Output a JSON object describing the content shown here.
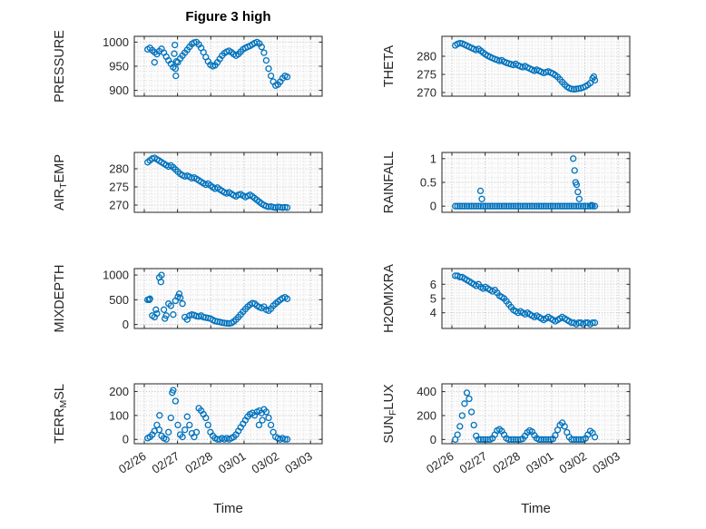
{
  "title": "Figure 3 high",
  "marker_color": "#0072BD",
  "x_axis": {
    "label": "Time",
    "ticks": [
      0,
      1,
      2,
      3,
      4,
      5
    ],
    "tick_labels": [
      "02/26",
      "02/27",
      "02/28",
      "03/01",
      "03/02",
      "03/03"
    ],
    "xlim": [
      -0.3,
      5.35
    ]
  },
  "shared_x": [
    0.1,
    0.17,
    0.24,
    0.31,
    0.38,
    0.45,
    0.52,
    0.59,
    0.66,
    0.73,
    0.8,
    0.87,
    0.94,
    1.01,
    1.08,
    1.15,
    1.22,
    1.29,
    1.36,
    1.43,
    1.5,
    1.57,
    1.64,
    1.71,
    1.78,
    1.85,
    1.92,
    1.99,
    2.06,
    2.13,
    2.2,
    2.27,
    2.34,
    2.41,
    2.48,
    2.55,
    2.62,
    2.69,
    2.76,
    2.83,
    2.9,
    2.97,
    3.04,
    3.11,
    3.18,
    3.25,
    3.32,
    3.39,
    3.46,
    3.53,
    3.6,
    3.67,
    3.74,
    3.81,
    3.88,
    3.95,
    4.02,
    4.09,
    4.16,
    4.23,
    4.3
  ],
  "chart_data": [
    {
      "key": "pressure",
      "type": "scatter",
      "col": 0,
      "row": 0,
      "ylabel": [
        {
          "t": "PRESSURE"
        }
      ],
      "yticks": [
        900,
        950,
        1000
      ],
      "ylim": [
        888,
        1012
      ],
      "y": [
        985,
        988,
        983,
        979,
        975,
        981,
        986,
        978,
        970,
        962,
        955,
        948,
        945,
        958,
        966,
        972,
        978,
        984,
        990,
        996,
        999,
        1000,
        995,
        988,
        979,
        969,
        960,
        953,
        950,
        952,
        958,
        965,
        972,
        977,
        980,
        982,
        979,
        975,
        972,
        975,
        980,
        985,
        988,
        990,
        992,
        995,
        998,
        1000,
        997,
        990,
        978,
        962,
        945,
        930,
        918,
        910,
        912,
        918,
        925,
        930,
        928
      ],
      "extra_points": [
        {
          "x": 0.95,
          "y": 930
        },
        {
          "x": 0.92,
          "y": 994
        },
        {
          "x": 0.9,
          "y": 976
        },
        {
          "x": 0.97,
          "y": 960
        },
        {
          "x": 0.31,
          "y": 958
        }
      ]
    },
    {
      "key": "theta",
      "type": "scatter",
      "col": 1,
      "row": 0,
      "ylabel": [
        {
          "t": "THETA"
        }
      ],
      "yticks": [
        270,
        275,
        280
      ],
      "ylim": [
        269,
        285.5
      ],
      "y": [
        283,
        283.4,
        283.6,
        283.5,
        283.2,
        282.9,
        282.6,
        282.3,
        282,
        281.7,
        282,
        281.5,
        281,
        280.5,
        280.1,
        279.8,
        279.5,
        279.2,
        279,
        278.7,
        278.9,
        278.5,
        278.2,
        278,
        277.8,
        277.6,
        277.9,
        277.5,
        277.2,
        277,
        277.3,
        276.9,
        276.6,
        276.3,
        276,
        276.3,
        276,
        275.7,
        275.4,
        275.6,
        275.8,
        275.5,
        275.2,
        274.8,
        274.3,
        273.6,
        272.9,
        272.2,
        271.6,
        271.2,
        271,
        270.9,
        271,
        271.1,
        271.2,
        271.4,
        271.7,
        272.1,
        272.6,
        273.9,
        273.4
      ],
      "extra_points": [
        {
          "x": 4.27,
          "y": 274.4
        }
      ]
    },
    {
      "key": "air_temp",
      "type": "scatter",
      "col": 0,
      "row": 1,
      "ylabel": [
        {
          "t": "AIR"
        },
        {
          "t": "T",
          "sub": true
        },
        {
          "t": "EMP"
        }
      ],
      "yticks": [
        270,
        275,
        280
      ],
      "ylim": [
        268,
        284.5
      ],
      "y": [
        281.8,
        282.3,
        282.8,
        283,
        282.6,
        282.2,
        281.8,
        281.4,
        281,
        280.6,
        280.9,
        280.4,
        279.8,
        279.2,
        278.6,
        278.2,
        277.9,
        278.1,
        277.8,
        277.4,
        277.6,
        277.2,
        276.8,
        276.4,
        276,
        275.6,
        275.9,
        275.4,
        274.9,
        274.5,
        274.8,
        274.3,
        273.9,
        273.5,
        273.2,
        273.5,
        273.1,
        272.7,
        272.4,
        272.8,
        273,
        272.6,
        272.2,
        272.5,
        272.8,
        272.4,
        271.9,
        271.4,
        270.9,
        270.4,
        270,
        269.7,
        269.5,
        269.6,
        269.4,
        269.3,
        269.5,
        269.4,
        269.3,
        269.4,
        269.3
      ],
      "extra_points": []
    },
    {
      "key": "rainfall",
      "type": "scatter",
      "col": 1,
      "row": 1,
      "ylabel": [
        {
          "t": "RAINFALL"
        }
      ],
      "yticks": [
        0,
        0.5,
        1
      ],
      "ylim": [
        -0.13,
        1.13
      ],
      "y": [
        0,
        0,
        0,
        0,
        0,
        0,
        0,
        0,
        0,
        0,
        0,
        0,
        0,
        0,
        0,
        0,
        0,
        0,
        0,
        0,
        0,
        0,
        0,
        0,
        0,
        0,
        0,
        0,
        0,
        0,
        0,
        0,
        0,
        0,
        0,
        0,
        0,
        0,
        0,
        0,
        0,
        0,
        0,
        0,
        0,
        0,
        0,
        0,
        0,
        0,
        0,
        0,
        0,
        0,
        0,
        0,
        0,
        0,
        0,
        0,
        0
      ],
      "extra_points": [
        {
          "x": 0.86,
          "y": 0.32
        },
        {
          "x": 0.9,
          "y": 0.15
        },
        {
          "x": 3.65,
          "y": 1.0
        },
        {
          "x": 3.69,
          "y": 0.75
        },
        {
          "x": 3.72,
          "y": 0.5
        },
        {
          "x": 3.75,
          "y": 0.45
        },
        {
          "x": 3.79,
          "y": 0.3
        },
        {
          "x": 3.83,
          "y": 0.15
        },
        {
          "x": 4.2,
          "y": 0.02
        }
      ]
    },
    {
      "key": "mixdepth",
      "type": "scatter",
      "col": 0,
      "row": 2,
      "ylabel": [
        {
          "t": "MIXDEPTH"
        }
      ],
      "yticks": [
        0,
        500,
        1000
      ],
      "ylim": [
        -80,
        1130
      ],
      "y": [
        500,
        520,
        180,
        150,
        220,
        950,
        1000,
        300,
        180,
        420,
        380,
        200,
        480,
        560,
        540,
        420,
        150,
        100,
        180,
        200,
        190,
        170,
        160,
        180,
        150,
        140,
        130,
        120,
        90,
        70,
        60,
        50,
        40,
        30,
        25,
        20,
        30,
        60,
        100,
        150,
        200,
        260,
        310,
        360,
        400,
        430,
        420,
        380,
        350,
        330,
        360,
        300,
        280,
        320,
        380,
        420,
        460,
        500,
        530,
        550,
        520
      ],
      "extra_points": [
        {
          "x": 0.5,
          "y": 860
        },
        {
          "x": 0.15,
          "y": 500
        },
        {
          "x": 0.35,
          "y": 300
        },
        {
          "x": 1.05,
          "y": 620
        },
        {
          "x": 0.62,
          "y": 120
        }
      ]
    },
    {
      "key": "h2omixra",
      "type": "scatter",
      "col": 1,
      "row": 2,
      "ylabel": [
        {
          "t": "H2OMIXRA"
        }
      ],
      "yticks": [
        4,
        5,
        6
      ],
      "ylim": [
        2.9,
        7.1
      ],
      "y": [
        6.6,
        6.6,
        6.5,
        6.5,
        6.4,
        6.3,
        6.2,
        6.1,
        6,
        5.9,
        6,
        5.8,
        5.7,
        5.8,
        5.7,
        5.6,
        5.5,
        5.6,
        5.4,
        5.2,
        5.1,
        5,
        4.8,
        4.6,
        4.4,
        4.2,
        4.1,
        4,
        4.1,
        4,
        3.9,
        4,
        3.9,
        3.8,
        3.7,
        3.8,
        3.7,
        3.6,
        3.5,
        3.6,
        3.7,
        3.6,
        3.5,
        3.4,
        3.5,
        3.6,
        3.7,
        3.6,
        3.5,
        3.4,
        3.3,
        3.3,
        3.2,
        3.3,
        3.3,
        3.2,
        3.3,
        3.3,
        3.2,
        3.3,
        3.3
      ],
      "extra_points": []
    },
    {
      "key": "terr_msl",
      "type": "scatter",
      "col": 0,
      "row": 3,
      "ylabel": [
        {
          "t": "TERR"
        },
        {
          "t": "M",
          "sub": true
        },
        {
          "t": "SL"
        }
      ],
      "yticks": [
        0,
        100,
        200
      ],
      "ylim": [
        -18,
        232
      ],
      "y": [
        5,
        10,
        20,
        35,
        60,
        40,
        15,
        5,
        0,
        30,
        90,
        205,
        160,
        60,
        20,
        10,
        40,
        95,
        60,
        25,
        10,
        30,
        130,
        120,
        105,
        90,
        60,
        30,
        15,
        5,
        0,
        0,
        5,
        0,
        5,
        0,
        5,
        10,
        20,
        35,
        50,
        65,
        80,
        95,
        105,
        110,
        100,
        115,
        120,
        110,
        125,
        115,
        90,
        60,
        30,
        10,
        5,
        0,
        5,
        0,
        0
      ],
      "extra_points": [
        {
          "x": 0.84,
          "y": 195
        },
        {
          "x": 0.46,
          "y": 100
        },
        {
          "x": 3.45,
          "y": 60
        },
        {
          "x": 3.55,
          "y": 80
        }
      ]
    },
    {
      "key": "sun_flux",
      "type": "scatter",
      "col": 1,
      "row": 3,
      "ylabel": [
        {
          "t": "SUN"
        },
        {
          "t": "F",
          "sub": true
        },
        {
          "t": "LUX"
        }
      ],
      "yticks": [
        0,
        200,
        400
      ],
      "ylim": [
        -35,
        465
      ],
      "y": [
        0,
        40,
        110,
        200,
        300,
        390,
        340,
        230,
        120,
        30,
        0,
        0,
        0,
        0,
        0,
        0,
        10,
        40,
        75,
        85,
        70,
        40,
        10,
        0,
        0,
        0,
        0,
        0,
        0,
        5,
        30,
        60,
        75,
        65,
        35,
        10,
        0,
        0,
        0,
        0,
        0,
        0,
        5,
        35,
        80,
        120,
        140,
        110,
        60,
        20,
        0,
        0,
        0,
        0,
        0,
        0,
        10,
        40,
        70,
        55,
        20
      ],
      "extra_points": []
    }
  ]
}
